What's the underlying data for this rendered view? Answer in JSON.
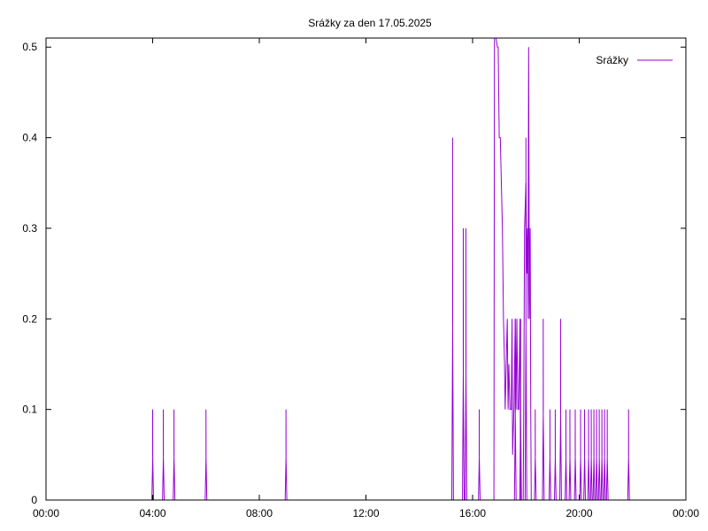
{
  "chart_data": {
    "type": "line",
    "title": "Srážky za den 17.05.2025",
    "xlabel": "",
    "ylabel": "",
    "x_unit": "time of day (hours)",
    "xlim": [
      0,
      24
    ],
    "ylim": [
      0,
      0.51
    ],
    "x_ticks": [
      "00:00",
      "04:00",
      "08:00",
      "12:00",
      "16:00",
      "20:00",
      "00:00"
    ],
    "y_ticks": [
      "0",
      "0.1",
      "0.2",
      "0.3",
      "0.4",
      "0.5"
    ],
    "grid": false,
    "legend_position": "top-right",
    "series": [
      {
        "name": "Srážky",
        "color": "#9400d3",
        "spikes": [
          {
            "x": 4.0,
            "y": 0.1
          },
          {
            "x": 4.4,
            "y": 0.1
          },
          {
            "x": 4.8,
            "y": 0.1
          },
          {
            "x": 6.0,
            "y": 0.1
          },
          {
            "x": 9.0,
            "y": 0.1
          },
          {
            "x": 15.25,
            "y": 0.4
          },
          {
            "x": 15.65,
            "y": 0.3
          },
          {
            "x": 15.75,
            "y": 0.3
          },
          {
            "x": 16.25,
            "y": 0.1
          },
          {
            "x": 17.6,
            "y": 0.2
          },
          {
            "x": 17.8,
            "y": 0.2
          },
          {
            "x": 18.0,
            "y": 0.4
          },
          {
            "x": 18.35,
            "y": 0.1
          },
          {
            "x": 18.65,
            "y": 0.2
          },
          {
            "x": 18.9,
            "y": 0.1
          },
          {
            "x": 19.1,
            "y": 0.1
          },
          {
            "x": 19.3,
            "y": 0.2
          },
          {
            "x": 19.5,
            "y": 0.1
          },
          {
            "x": 19.65,
            "y": 0.1
          },
          {
            "x": 19.85,
            "y": 0.1
          },
          {
            "x": 20.05,
            "y": 0.1
          },
          {
            "x": 20.2,
            "y": 0.1
          },
          {
            "x": 20.35,
            "y": 0.1
          },
          {
            "x": 20.45,
            "y": 0.1
          },
          {
            "x": 20.55,
            "y": 0.1
          },
          {
            "x": 20.65,
            "y": 0.1
          },
          {
            "x": 20.75,
            "y": 0.1
          },
          {
            "x": 20.85,
            "y": 0.1
          },
          {
            "x": 20.95,
            "y": 0.1
          },
          {
            "x": 21.05,
            "y": 0.1
          },
          {
            "x": 21.85,
            "y": 0.1
          }
        ],
        "blocks": [
          {
            "points": [
              [
                16.8,
                0
              ],
              [
                16.82,
                0.51
              ],
              [
                16.88,
                0.51
              ],
              [
                16.93,
                0.5
              ],
              [
                16.96,
                0.5
              ],
              [
                17.0,
                0.4
              ],
              [
                17.04,
                0.4
              ],
              [
                17.12,
                0.3
              ],
              [
                17.16,
                0.2
              ],
              [
                17.2,
                0.15
              ],
              [
                17.22,
                0.1
              ],
              [
                17.3,
                0.2
              ],
              [
                17.33,
                0.1
              ],
              [
                17.36,
                0.15
              ],
              [
                17.4,
                0.1
              ],
              [
                17.45,
                0.1
              ],
              [
                17.48,
                0.2
              ],
              [
                17.5,
                0.05
              ],
              [
                17.55,
                0.1
              ],
              [
                17.6,
                0.2
              ],
              [
                17.63,
                0.1
              ],
              [
                17.66,
                0.2
              ],
              [
                17.7,
                0.1
              ],
              [
                17.73,
                0.1
              ],
              [
                17.78,
                0.2
              ],
              [
                17.8,
                0
              ]
            ]
          },
          {
            "points": [
              [
                17.9,
                0
              ],
              [
                17.92,
                0.1
              ],
              [
                17.95,
                0.3
              ],
              [
                18.0,
                0.35
              ],
              [
                18.03,
                0.25
              ],
              [
                18.06,
                0.3
              ],
              [
                18.08,
                0.2
              ],
              [
                18.1,
                0.5
              ],
              [
                18.13,
                0.2
              ],
              [
                18.16,
                0.3
              ],
              [
                18.18,
                0.1
              ],
              [
                18.2,
                0
              ]
            ]
          }
        ]
      }
    ]
  }
}
